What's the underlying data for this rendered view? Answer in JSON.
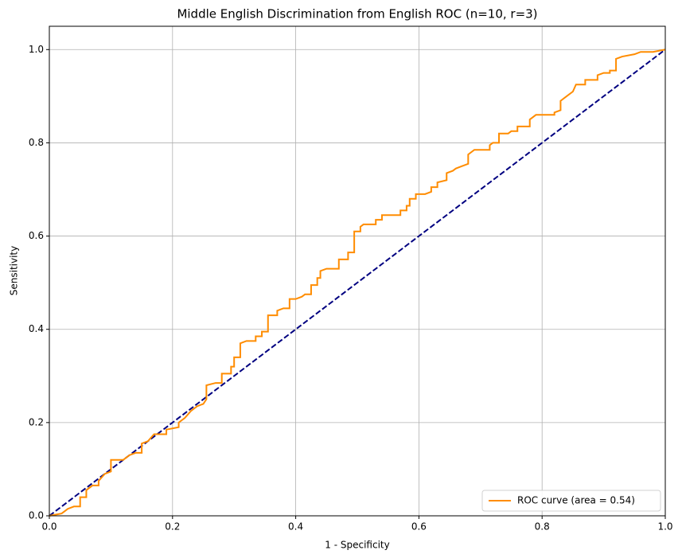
{
  "chart_data": {
    "type": "line",
    "title": "Middle English Discrimination from English ROC (n=10, r=3)",
    "x_label": "1 - Specificity",
    "y_label": "Sensitivity",
    "xlim": [
      0,
      1
    ],
    "ylim": [
      0,
      1.05
    ],
    "xticks": [
      {
        "value": 0,
        "label": "0.0"
      },
      0.2,
      0.4,
      0.6,
      0.8,
      {
        "value": 1,
        "label": "1.0"
      }
    ],
    "yticks": [
      {
        "value": 0,
        "label": "0.0"
      },
      0.2,
      0.4,
      0.6,
      0.8,
      {
        "value": 1,
        "label": "1.0"
      }
    ],
    "grid": true,
    "legend": "lower right",
    "series": [
      {
        "name": "ROC curve (area = 0.54)",
        "color": "#ff8c00",
        "dash": "solid",
        "x": [
          0,
          0.02,
          0.025,
          0.03,
          0.04,
          0.05,
          0.05,
          0.06,
          0.06,
          0.07,
          0.08,
          0.08,
          0.09,
          0.1,
          0.1,
          0.12,
          0.13,
          0.14,
          0.15,
          0.15,
          0.16,
          0.17,
          0.19,
          0.19,
          0.21,
          0.21,
          0.22,
          0.23,
          0.24,
          0.25,
          0.255,
          0.255,
          0.27,
          0.28,
          0.28,
          0.295,
          0.295,
          0.3,
          0.3,
          0.31,
          0.31,
          0.32,
          0.335,
          0.335,
          0.345,
          0.345,
          0.355,
          0.355,
          0.37,
          0.37,
          0.38,
          0.39,
          0.39,
          0.4,
          0.41,
          0.415,
          0.425,
          0.425,
          0.435,
          0.435,
          0.44,
          0.44,
          0.45,
          0.47,
          0.47,
          0.485,
          0.485,
          0.495,
          0.495,
          0.505,
          0.505,
          0.51,
          0.53,
          0.53,
          0.54,
          0.54,
          0.57,
          0.57,
          0.58,
          0.58,
          0.585,
          0.585,
          0.595,
          0.595,
          0.61,
          0.62,
          0.62,
          0.63,
          0.63,
          0.645,
          0.645,
          0.655,
          0.66,
          0.67,
          0.68,
          0.68,
          0.69,
          0.715,
          0.715,
          0.72,
          0.73,
          0.73,
          0.745,
          0.75,
          0.76,
          0.76,
          0.78,
          0.78,
          0.79,
          0.82,
          0.82,
          0.83,
          0.83,
          0.84,
          0.85,
          0.855,
          0.87,
          0.87,
          0.89,
          0.89,
          0.9,
          0.91,
          0.91,
          0.92,
          0.92,
          0.93,
          0.95,
          0.96,
          0.98,
          1
        ],
        "values": [
          0,
          0.005,
          0.01,
          0.015,
          0.02,
          0.02,
          0.04,
          0.04,
          0.055,
          0.065,
          0.065,
          0.075,
          0.09,
          0.095,
          0.12,
          0.12,
          0.13,
          0.135,
          0.135,
          0.155,
          0.16,
          0.175,
          0.175,
          0.185,
          0.19,
          0.2,
          0.21,
          0.225,
          0.235,
          0.24,
          0.25,
          0.28,
          0.285,
          0.285,
          0.305,
          0.305,
          0.32,
          0.32,
          0.34,
          0.34,
          0.37,
          0.375,
          0.375,
          0.385,
          0.385,
          0.395,
          0.395,
          0.43,
          0.43,
          0.44,
          0.445,
          0.445,
          0.465,
          0.465,
          0.47,
          0.475,
          0.475,
          0.495,
          0.495,
          0.51,
          0.51,
          0.525,
          0.53,
          0.53,
          0.55,
          0.55,
          0.565,
          0.565,
          0.61,
          0.61,
          0.62,
          0.625,
          0.625,
          0.635,
          0.635,
          0.645,
          0.645,
          0.655,
          0.655,
          0.665,
          0.665,
          0.68,
          0.68,
          0.69,
          0.69,
          0.695,
          0.705,
          0.705,
          0.715,
          0.72,
          0.735,
          0.74,
          0.745,
          0.75,
          0.755,
          0.775,
          0.785,
          0.785,
          0.795,
          0.8,
          0.8,
          0.82,
          0.82,
          0.825,
          0.825,
          0.835,
          0.835,
          0.85,
          0.86,
          0.86,
          0.865,
          0.87,
          0.89,
          0.9,
          0.91,
          0.925,
          0.925,
          0.935,
          0.935,
          0.945,
          0.95,
          0.95,
          0.955,
          0.955,
          0.98,
          0.985,
          0.99,
          0.995,
          0.995,
          1
        ]
      },
      {
        "color": "#000080",
        "dash": "dashed",
        "x": [
          0,
          1
        ],
        "values": [
          0,
          1
        ]
      }
    ]
  }
}
